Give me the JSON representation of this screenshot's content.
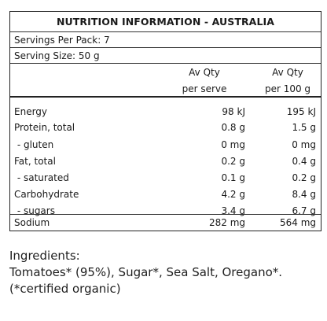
{
  "panel": {
    "title": "NUTRITION INFORMATION - AUSTRALIA",
    "servings_per_pack": "Servings Per Pack: 7",
    "serving_size": "Serving Size: 50 g",
    "col_a_header_line1": "Av Qty",
    "col_a_header_line2": "per serve",
    "col_b_header_line1": "Av Qty",
    "col_b_header_line2": "per 100 g",
    "rows": [
      {
        "label": "Energy",
        "per_serve": "98 kJ",
        "per_100g": "195 kJ"
      },
      {
        "label": "Protein, total",
        "per_serve": "0.8 g",
        "per_100g": "1.5 g"
      },
      {
        "label": " - gluten",
        "per_serve": "0 mg",
        "per_100g": "0 mg"
      },
      {
        "label": "Fat, total",
        "per_serve": "0.2 g",
        "per_100g": "0.4 g"
      },
      {
        "label": " - saturated",
        "per_serve": "0.1 g",
        "per_100g": "0.2 g"
      },
      {
        "label": "Carbohydrate",
        "per_serve": "4.2 g",
        "per_100g": "8.4 g"
      },
      {
        "label": " - sugars",
        "per_serve": "3.4 g",
        "per_100g": "6.7 g"
      },
      {
        "label": "Sodium",
        "per_serve": "282 mg",
        "per_100g": "564 mg"
      }
    ]
  },
  "ingredients": {
    "heading": "Ingredients:",
    "list": "Tomatoes* (95%), Sugar*, Sea Salt, Oregano*.",
    "note": "(*certified organic)"
  }
}
